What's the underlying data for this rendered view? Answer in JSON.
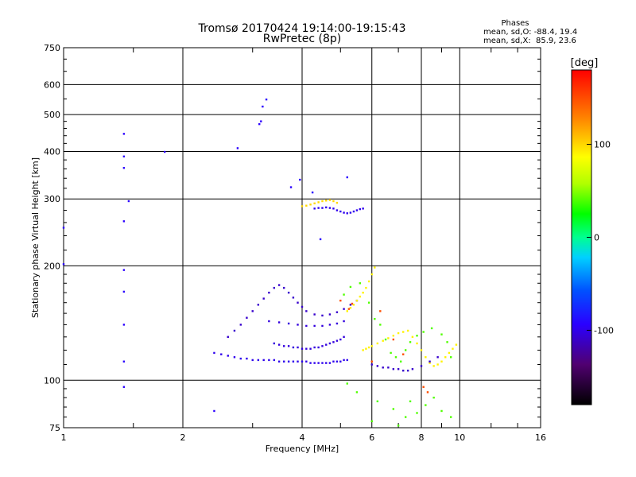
{
  "chart_data": {
    "type": "scatter",
    "title": "Tromsø 20170424 19:14:00-19:15:43",
    "subtitle": "RwPretec (8p)",
    "phases_block": {
      "heading": "Phases",
      "line_o": "mean, sd,O: -88.4, 19.4",
      "line_x": "mean, sd,X:  85.9, 23.6"
    },
    "xlabel": "Frequency [MHz]",
    "ylabel": "Stationary phase Virtual Height [km]",
    "x_scale": "log2",
    "xlim": [
      1,
      16
    ],
    "x_ticks": [
      1,
      2,
      4,
      6,
      8,
      10,
      16
    ],
    "x_tick_labels": [
      "1",
      "2",
      "4",
      "6",
      "8",
      "10",
      "16"
    ],
    "y_scale": "log",
    "ylim": [
      75,
      750
    ],
    "y_ticks": [
      75,
      100,
      200,
      300,
      400,
      500,
      600,
      750
    ],
    "y_tick_labels": [
      "75",
      "100",
      "200",
      "300",
      "400",
      "500",
      "600",
      "750"
    ],
    "grid": true,
    "colorbar": {
      "label": "[deg]",
      "range": [
        -180,
        180
      ],
      "ticks": [
        100,
        0,
        -100
      ],
      "tick_labels": [
        "100",
        "0",
        "-100"
      ]
    },
    "series": [
      {
        "comment": "isolated echoes at low frequency",
        "phase": -95,
        "points": [
          [
            1.42,
            445
          ],
          [
            1.42,
            388
          ],
          [
            1.42,
            362
          ],
          [
            1.42,
            262
          ],
          [
            1.42,
            195
          ],
          [
            1.42,
            171
          ],
          [
            1.42,
            140
          ],
          [
            1.42,
            112
          ],
          [
            1.42,
            96
          ],
          [
            1.46,
            296
          ],
          [
            1.0,
            252
          ],
          [
            1.0,
            202
          ],
          [
            1.8,
            399
          ],
          [
            2.75,
            408
          ],
          [
            3.25,
            548
          ],
          [
            3.15,
            480
          ],
          [
            3.12,
            472
          ],
          [
            3.18,
            525
          ],
          [
            3.75,
            322
          ],
          [
            3.95,
            337
          ],
          [
            4.25,
            312
          ],
          [
            4.45,
            235
          ],
          [
            2.4,
            83
          ],
          [
            5.2,
            342
          ]
        ]
      },
      {
        "comment": "lower E/F trace ~112 km",
        "phase": -100,
        "points": [
          [
            2.4,
            118
          ],
          [
            2.5,
            117
          ],
          [
            2.6,
            116
          ],
          [
            2.7,
            115
          ],
          [
            2.8,
            114
          ],
          [
            2.9,
            114
          ],
          [
            3.0,
            113
          ],
          [
            3.1,
            113
          ],
          [
            3.2,
            113
          ],
          [
            3.3,
            113
          ],
          [
            3.4,
            113
          ],
          [
            3.5,
            112
          ],
          [
            3.6,
            112
          ],
          [
            3.7,
            112
          ],
          [
            3.8,
            112
          ],
          [
            3.9,
            112
          ],
          [
            4.0,
            112
          ],
          [
            4.1,
            112
          ],
          [
            4.2,
            111
          ],
          [
            4.3,
            111
          ],
          [
            4.4,
            111
          ],
          [
            4.5,
            111
          ],
          [
            4.6,
            111
          ],
          [
            4.7,
            111
          ],
          [
            4.8,
            112
          ],
          [
            4.9,
            112
          ],
          [
            5.0,
            112
          ],
          [
            5.1,
            113
          ],
          [
            5.2,
            113
          ]
        ]
      },
      {
        "comment": "second trace ~122 km",
        "phase": -105,
        "points": [
          [
            3.4,
            125
          ],
          [
            3.5,
            124
          ],
          [
            3.6,
            123
          ],
          [
            3.7,
            123
          ],
          [
            3.8,
            122
          ],
          [
            3.9,
            122
          ],
          [
            4.0,
            121
          ],
          [
            4.1,
            121
          ],
          [
            4.2,
            121
          ],
          [
            4.3,
            122
          ],
          [
            4.4,
            122
          ],
          [
            4.5,
            123
          ],
          [
            4.6,
            124
          ],
          [
            4.7,
            125
          ],
          [
            4.8,
            126
          ],
          [
            4.9,
            127
          ],
          [
            5.0,
            128
          ],
          [
            5.1,
            130
          ]
        ]
      },
      {
        "comment": "curved F-region multi trace",
        "phase": -110,
        "points": [
          [
            2.6,
            130
          ],
          [
            2.7,
            135
          ],
          [
            2.8,
            140
          ],
          [
            2.9,
            146
          ],
          [
            3.0,
            152
          ],
          [
            3.1,
            158
          ],
          [
            3.2,
            164
          ],
          [
            3.3,
            170
          ],
          [
            3.4,
            175
          ],
          [
            3.5,
            178
          ],
          [
            3.6,
            175
          ],
          [
            3.7,
            170
          ],
          [
            3.8,
            165
          ],
          [
            3.9,
            160
          ],
          [
            4.0,
            156
          ],
          [
            4.1,
            152
          ],
          [
            4.3,
            149
          ],
          [
            4.5,
            148
          ],
          [
            4.7,
            149
          ],
          [
            4.9,
            151
          ],
          [
            5.1,
            154
          ],
          [
            5.3,
            158
          ],
          [
            5.5,
            162
          ]
        ]
      },
      {
        "comment": "band ~140-145 km",
        "phase": -105,
        "points": [
          [
            3.3,
            143
          ],
          [
            3.5,
            142
          ],
          [
            3.7,
            141
          ],
          [
            3.9,
            140
          ],
          [
            4.1,
            139
          ],
          [
            4.3,
            139
          ],
          [
            4.5,
            139
          ],
          [
            4.7,
            140
          ],
          [
            4.9,
            141
          ],
          [
            5.1,
            143
          ]
        ]
      },
      {
        "comment": "upper layer ~285 km",
        "phase": -100,
        "points": [
          [
            4.3,
            283
          ],
          [
            4.4,
            284
          ],
          [
            4.5,
            284
          ],
          [
            4.6,
            285
          ],
          [
            4.7,
            284
          ],
          [
            4.8,
            283
          ],
          [
            4.9,
            280
          ],
          [
            5.0,
            278
          ],
          [
            5.1,
            276
          ],
          [
            5.2,
            275
          ],
          [
            5.3,
            276
          ],
          [
            5.4,
            278
          ],
          [
            5.5,
            280
          ],
          [
            5.6,
            282
          ],
          [
            5.7,
            283
          ]
        ]
      },
      {
        "comment": "upper layer O-mode ~290 km",
        "phase": 100,
        "points": [
          [
            4.0,
            287
          ],
          [
            4.1,
            288
          ],
          [
            4.2,
            290
          ],
          [
            4.3,
            292
          ],
          [
            4.4,
            294
          ],
          [
            4.5,
            296
          ],
          [
            4.6,
            297
          ],
          [
            4.7,
            298
          ],
          [
            4.8,
            296
          ],
          [
            4.9,
            293
          ]
        ]
      },
      {
        "comment": "X-mode trace near 5-7 MHz",
        "phase": 90,
        "points": [
          [
            5.2,
            152
          ],
          [
            5.3,
            155
          ],
          [
            5.4,
            158
          ],
          [
            5.5,
            162
          ],
          [
            5.6,
            166
          ],
          [
            5.7,
            170
          ],
          [
            5.8,
            175
          ],
          [
            5.9,
            182
          ],
          [
            6.0,
            190
          ],
          [
            6.1,
            198
          ],
          [
            5.7,
            120
          ],
          [
            5.8,
            121
          ],
          [
            5.9,
            122
          ],
          [
            6.0,
            123
          ],
          [
            6.2,
            125
          ],
          [
            6.4,
            127
          ],
          [
            6.6,
            129
          ],
          [
            6.8,
            131
          ],
          [
            7.0,
            133
          ],
          [
            7.2,
            134
          ],
          [
            7.4,
            135
          ],
          [
            7.6,
            130
          ],
          [
            7.8,
            125
          ],
          [
            8.0,
            120
          ],
          [
            8.2,
            115
          ],
          [
            8.4,
            111
          ],
          [
            8.6,
            109
          ],
          [
            8.8,
            110
          ],
          [
            9.0,
            112
          ],
          [
            9.2,
            115
          ],
          [
            9.4,
            118
          ],
          [
            9.6,
            121
          ],
          [
            9.8,
            124
          ]
        ]
      },
      {
        "comment": "trace 6-8 MHz ~108 km",
        "phase": -110,
        "points": [
          [
            6.0,
            110
          ],
          [
            6.2,
            109
          ],
          [
            6.4,
            108
          ],
          [
            6.6,
            108
          ],
          [
            6.8,
            107
          ],
          [
            7.0,
            107
          ],
          [
            7.2,
            106
          ],
          [
            7.4,
            106
          ],
          [
            7.6,
            107
          ],
          [
            8.0,
            109
          ],
          [
            8.4,
            112
          ],
          [
            8.8,
            115
          ]
        ]
      },
      {
        "comment": "mixed-phase scatter 5-10 MHz",
        "phase": 40,
        "points": [
          [
            5.1,
            168
          ],
          [
            5.3,
            176
          ],
          [
            5.6,
            180
          ],
          [
            5.9,
            160
          ],
          [
            6.1,
            145
          ],
          [
            6.3,
            140
          ],
          [
            6.5,
            128
          ],
          [
            6.7,
            118
          ],
          [
            6.9,
            115
          ],
          [
            7.1,
            112
          ],
          [
            7.3,
            120
          ],
          [
            7.5,
            126
          ],
          [
            7.8,
            131
          ],
          [
            8.1,
            134
          ],
          [
            8.5,
            137
          ],
          [
            9.0,
            132
          ],
          [
            9.3,
            126
          ],
          [
            9.5,
            115
          ],
          [
            5.2,
            98
          ],
          [
            5.5,
            93
          ],
          [
            6.2,
            88
          ],
          [
            6.8,
            84
          ],
          [
            7.3,
            80
          ],
          [
            7.8,
            82
          ],
          [
            8.2,
            86
          ],
          [
            8.6,
            90
          ],
          [
            9.0,
            83
          ],
          [
            9.5,
            80
          ],
          [
            6.0,
            78
          ],
          [
            7.0,
            76
          ],
          [
            7.5,
            88
          ]
        ]
      },
      {
        "comment": "warm-phase echoes",
        "phase": 150,
        "points": [
          [
            5.25,
            154
          ],
          [
            5.35,
            159
          ],
          [
            6.3,
            152
          ],
          [
            6.8,
            128
          ],
          [
            8.1,
            96
          ],
          [
            8.3,
            93
          ],
          [
            7.2,
            117
          ],
          [
            6.0,
            112
          ],
          [
            5.0,
            162
          ]
        ]
      }
    ]
  }
}
